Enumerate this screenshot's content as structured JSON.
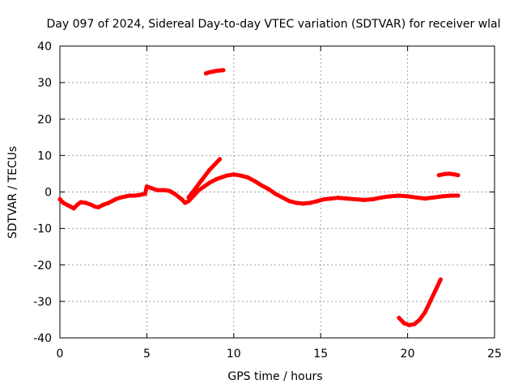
{
  "chart_data": {
    "type": "scatter",
    "title": "Day 097 of 2024, Sidereal Day-to-day VTEC variation (SDTVAR) for receiver wlal",
    "xlabel": "GPS time / hours",
    "ylabel": "SDTVAR / TECUs",
    "xlim": [
      0,
      25
    ],
    "ylim": [
      -40,
      40
    ],
    "xticks": [
      0,
      5,
      10,
      15,
      20,
      25
    ],
    "yticks": [
      -40,
      -30,
      -20,
      -10,
      0,
      10,
      20,
      30,
      40
    ],
    "grid": true,
    "colors": {
      "series": "#ff0000",
      "grid": "#a0a0a0",
      "axis": "#000000"
    },
    "series": [
      {
        "name": "main trace",
        "x": [
          0.0,
          0.2,
          0.4,
          0.6,
          0.8,
          1.0,
          1.2,
          1.5,
          1.8,
          2.0,
          2.2,
          2.5,
          2.8,
          3.0,
          3.2,
          3.5,
          3.8,
          4.0,
          4.3,
          4.6,
          4.9,
          5.0,
          5.3,
          5.6,
          6.0,
          6.3,
          6.6,
          7.0,
          7.2,
          7.4,
          7.7,
          8.0,
          8.3,
          8.6,
          9.0,
          9.3,
          9.6,
          10.0,
          10.4,
          10.8,
          11.2,
          11.6,
          12.0,
          12.4,
          12.8,
          13.2,
          13.6,
          14.0,
          14.4,
          14.8,
          15.2,
          15.6,
          16.0,
          16.5,
          17.0,
          17.5,
          18.0,
          18.5,
          19.0,
          19.5,
          20.0,
          20.5,
          21.0,
          21.5,
          22.0,
          22.5,
          22.9
        ],
        "y": [
          -2.0,
          -3.0,
          -3.5,
          -4.0,
          -4.5,
          -3.5,
          -2.8,
          -3.0,
          -3.5,
          -4.0,
          -4.2,
          -3.5,
          -3.0,
          -2.5,
          -2.0,
          -1.5,
          -1.2,
          -1.0,
          -1.0,
          -0.8,
          -0.5,
          1.5,
          1.0,
          0.5,
          0.5,
          0.3,
          -0.5,
          -2.0,
          -3.0,
          -2.5,
          -1.0,
          0.5,
          1.5,
          2.5,
          3.5,
          4.0,
          4.5,
          4.8,
          4.5,
          4.0,
          3.0,
          1.8,
          0.8,
          -0.5,
          -1.5,
          -2.5,
          -3.0,
          -3.2,
          -3.0,
          -2.5,
          -2.0,
          -1.8,
          -1.6,
          -1.8,
          -2.0,
          -2.2,
          -2.0,
          -1.5,
          -1.2,
          -1.0,
          -1.2,
          -1.5,
          -1.8,
          -1.5,
          -1.2,
          -1.0,
          -1.0
        ]
      },
      {
        "name": "upper spur",
        "x": [
          7.4,
          7.8,
          8.2,
          8.6,
          9.0,
          9.2
        ],
        "y": [
          -1.5,
          1.0,
          3.5,
          6.0,
          8.0,
          9.0
        ]
      },
      {
        "name": "scatter near 33",
        "x": [
          8.4,
          8.6,
          8.8,
          9.0,
          9.2,
          9.4
        ],
        "y": [
          32.5,
          32.8,
          33.0,
          33.2,
          33.3,
          33.4
        ]
      },
      {
        "name": "segment near 5",
        "x": [
          21.8,
          22.1,
          22.4,
          22.7,
          22.9
        ],
        "y": [
          4.6,
          4.9,
          5.0,
          4.8,
          4.6
        ]
      },
      {
        "name": "lower arc",
        "x": [
          19.5,
          19.8,
          20.1,
          20.4,
          20.7,
          21.0,
          21.3,
          21.6,
          21.9
        ],
        "y": [
          -34.5,
          -36.0,
          -36.5,
          -36.2,
          -35.0,
          -33.0,
          -30.0,
          -27.0,
          -24.0
        ]
      }
    ]
  }
}
